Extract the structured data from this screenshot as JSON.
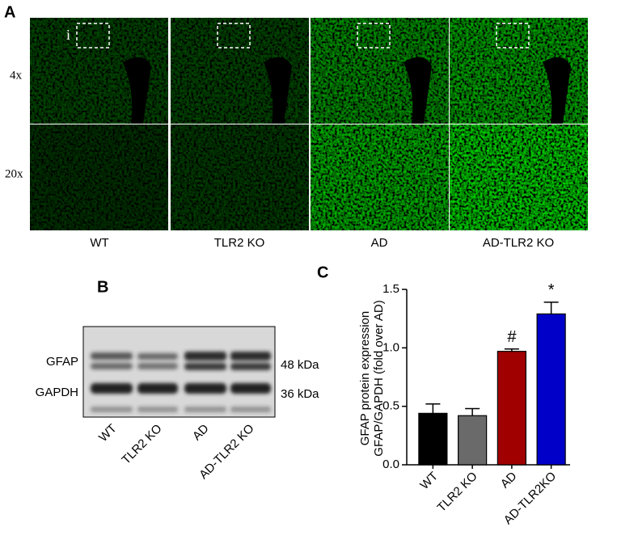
{
  "panel_a": {
    "letter": "A",
    "magnifications": [
      "4x",
      "20x"
    ],
    "groups": [
      "WT",
      "TLR2 KO",
      "AD",
      "AD-TLR2 KO"
    ],
    "inset": "i"
  },
  "panel_b": {
    "letter": "B",
    "proteins": [
      "GFAP",
      "GAPDH"
    ],
    "sizes": [
      "48 kDa",
      "36 kDa"
    ],
    "lanes": [
      "WT",
      "TLR2 KO",
      "AD",
      "AD-TLR2 KO"
    ]
  },
  "chart_data": {
    "type": "bar",
    "letter": "C",
    "y_label": [
      "GFAP protein expression",
      "GFAP/GAPDH (fold over AD)"
    ],
    "categories": [
      "WT",
      "TLR2 KO",
      "AD",
      "AD-TLR2KO"
    ],
    "values": [
      0.44,
      0.42,
      0.97,
      1.29
    ],
    "errors": [
      0.08,
      0.06,
      0.02,
      0.1
    ],
    "colors": [
      "#000000",
      "#6a6a6a",
      "#a00000",
      "#0000c8"
    ],
    "annotations": [
      {
        "label": "#",
        "category": "AD"
      },
      {
        "label": "*",
        "category": "AD-TLR2KO"
      }
    ],
    "ylim": [
      0,
      1.5
    ],
    "yticks": [
      {
        "value": 0,
        "label": "0.0"
      },
      0.5,
      {
        "value": 1,
        "label": "1.0"
      },
      1.5
    ]
  }
}
